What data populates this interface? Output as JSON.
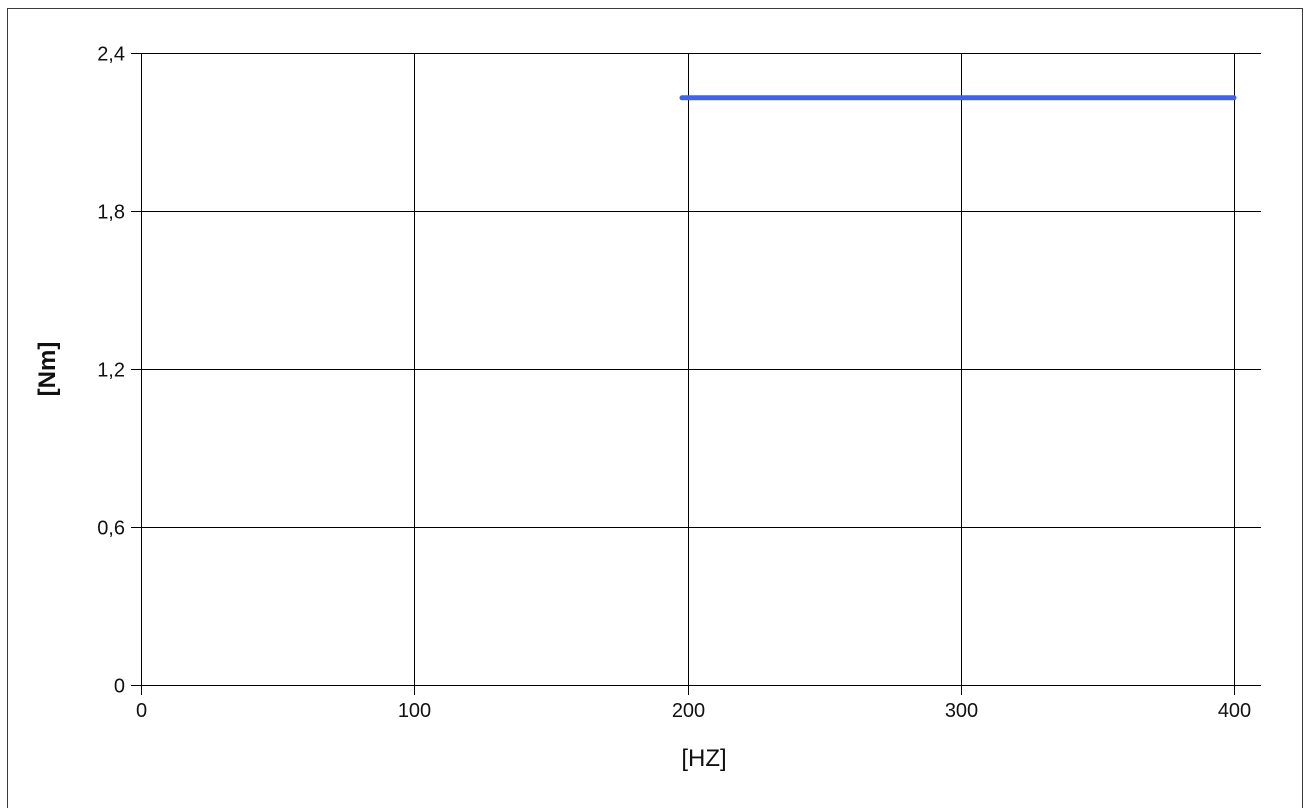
{
  "chart_data": {
    "type": "line",
    "xlabel": "[HZ]",
    "ylabel": "[Nm]",
    "xlim": [
      0,
      400
    ],
    "ylim": [
      0,
      2.4
    ],
    "x_ticks": [
      {
        "value": 0,
        "label": "0"
      },
      {
        "value": 100,
        "label": "100"
      },
      {
        "value": 200,
        "label": "200"
      },
      {
        "value": 300,
        "label": "300"
      },
      {
        "value": 400,
        "label": "400"
      }
    ],
    "y_ticks": [
      {
        "value": 0,
        "label": "0"
      },
      {
        "value": 0.6,
        "label": "0,6"
      },
      {
        "value": 1.2,
        "label": "1,2"
      },
      {
        "value": 1.8,
        "label": "1,8"
      },
      {
        "value": 2.4,
        "label": "2,4"
      }
    ],
    "grid": true,
    "legend": "none",
    "series": [
      {
        "color": "#3f63e8",
        "x": [
          198,
          400
        ],
        "y": [
          2.23,
          2.23
        ]
      }
    ]
  }
}
